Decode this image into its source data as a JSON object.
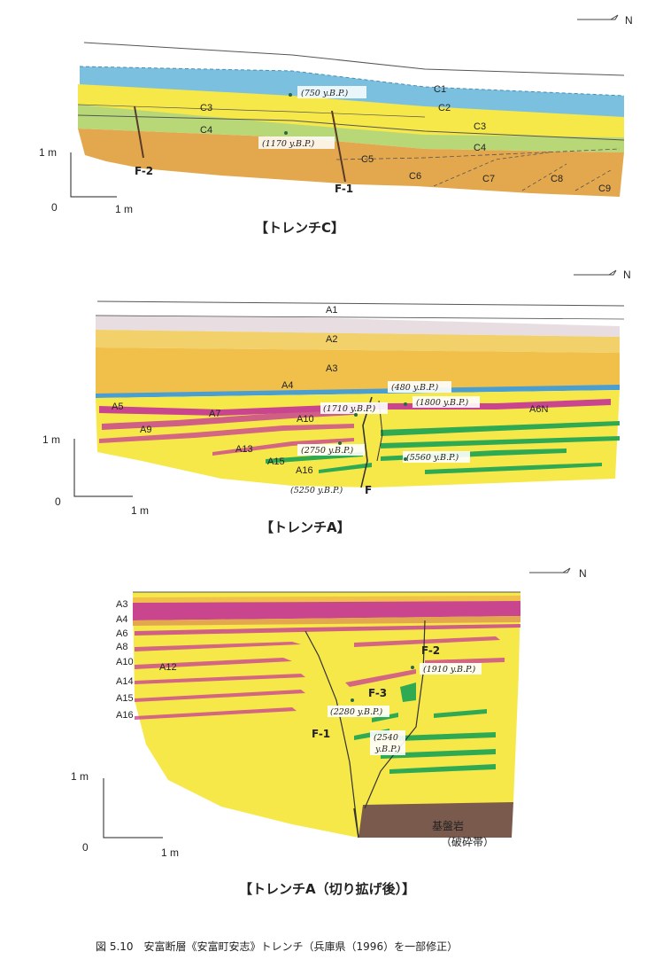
{
  "north_label": "N",
  "trench_c": {
    "title": "【トレンチC】",
    "layers": [
      "C1",
      "C2",
      "C3",
      "C3",
      "C4",
      "C4",
      "C5",
      "C6",
      "C7",
      "C8",
      "C9"
    ],
    "ages": [
      "(750 y.B.P.)",
      "(1170 y.B.P.)"
    ],
    "faults": [
      "F-2",
      "F-1"
    ],
    "scale_v": "1 m",
    "scale_h": "1 m",
    "origin": "0"
  },
  "trench_a": {
    "title": "【トレンチA】",
    "layers": [
      "A1",
      "A2",
      "A3",
      "A4",
      "A5",
      "A7",
      "A9",
      "A10",
      "A6N",
      "A13",
      "A15",
      "A16"
    ],
    "ages": [
      "(480 y.B.P.)",
      "(1710 y.B.P.)",
      "(1800 y.B.P.)",
      "(2750 y.B.P.)",
      "(5560 y.B.P.)",
      "(5250 y.B.P.)"
    ],
    "fault": "F",
    "scale_v": "1 m",
    "scale_h": "1 m",
    "origin": "0"
  },
  "trench_a_ext": {
    "title": "【トレンチA（切り拡げ後）】",
    "layers": [
      "A3",
      "A4",
      "A6",
      "A8",
      "A10",
      "A12",
      "A14",
      "A15",
      "A16"
    ],
    "ages": [
      "(1910 y.B.P.)",
      "(2280 y.B.P.)",
      "(2540",
      "y.B.P.)"
    ],
    "faults": [
      "F-2",
      "F-3",
      "F-1"
    ],
    "bedrock": [
      "基盤岩",
      "（破砕帯）"
    ],
    "scale_v": "1 m",
    "scale_h": "1 m",
    "origin": "0"
  },
  "caption": "図 5.10　安富断層《安富町安志》トレンチ（兵庫県（1996）を一部修正）",
  "colors": {
    "yellow": "#f7e84a",
    "orange": "#e3a84e",
    "blue": "#7cc0e0",
    "green": "#2faa52",
    "magenta": "#c9468f",
    "pink_gray": "#e8dde0",
    "brown": "#7a5a4c",
    "lightgreen": "#b8d878"
  }
}
